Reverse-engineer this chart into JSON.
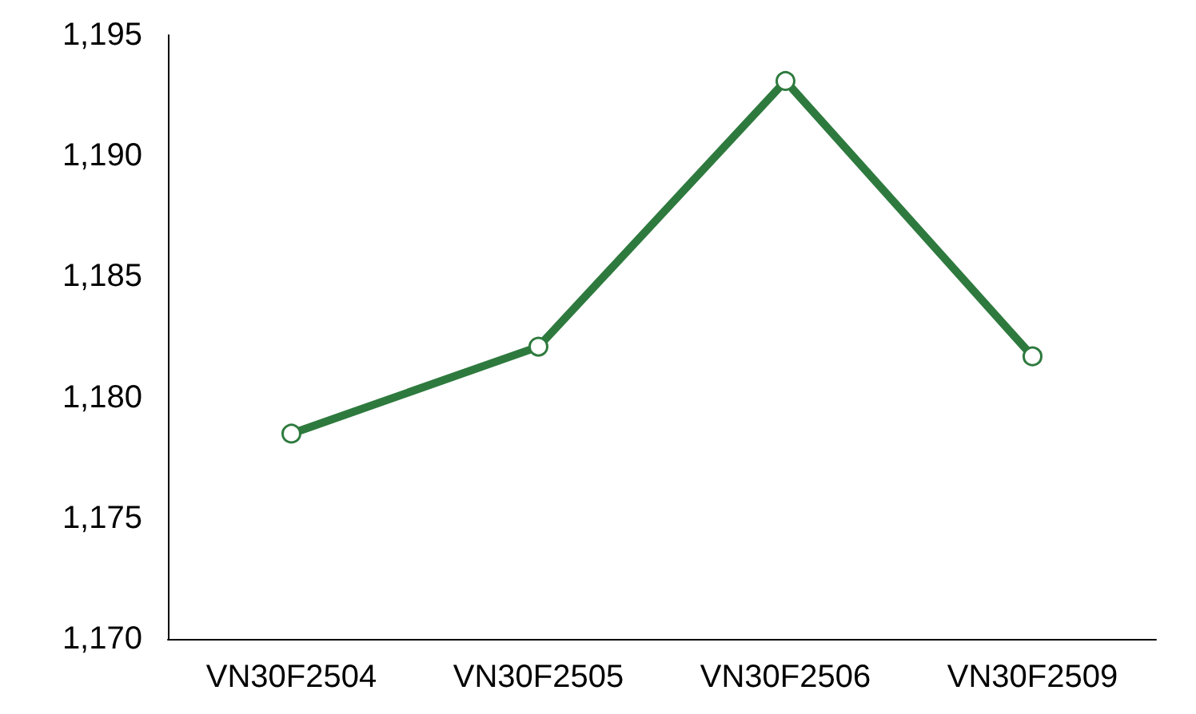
{
  "chart_data": {
    "type": "line",
    "categories": [
      "VN30F2504",
      "VN30F2505",
      "VN30F2506",
      "VN30F2509"
    ],
    "series": [
      {
        "color": "#2e7a3e",
        "values": [
          1178.5,
          1182.1,
          1193.1,
          1181.7
        ]
      }
    ],
    "ylim": [
      1170,
      1195
    ],
    "yticks": [
      {
        "value": 1170,
        "label": "1,170"
      },
      {
        "value": 1175,
        "label": "1,175"
      },
      {
        "value": 1180,
        "label": "1,180"
      },
      {
        "value": 1185,
        "label": "1,185"
      },
      {
        "value": 1190,
        "label": "1,190"
      },
      {
        "value": 1195,
        "label": "1,195"
      }
    ],
    "marker": "circle",
    "line_style": "solid"
  }
}
